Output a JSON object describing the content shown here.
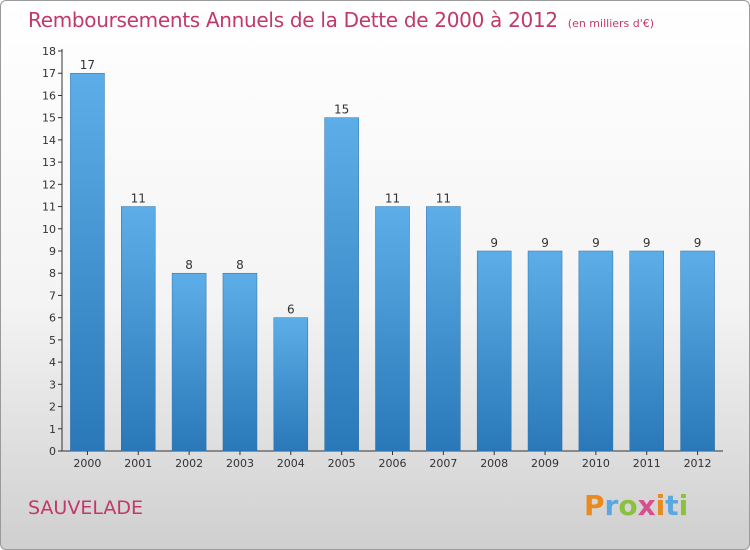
{
  "title": "Remboursements Annuels de la Dette de 2000 à 2012",
  "unit_note": "(en milliers d'€)",
  "commune": "SAUVELADE",
  "brand": {
    "text": "Proxiti",
    "colors": [
      "#e88a1f",
      "#5aa8df",
      "#8cc13f",
      "#d84f8e"
    ]
  },
  "colors": {
    "title": "#c2386a",
    "bar_top": "#5daee8",
    "bar_bottom": "#2a78b8"
  },
  "chart_data": {
    "type": "bar",
    "title": "Remboursements Annuels de la Dette de 2000 à 2012",
    "categories": [
      "2000",
      "2001",
      "2002",
      "2003",
      "2004",
      "2005",
      "2006",
      "2007",
      "2008",
      "2009",
      "2010",
      "2011",
      "2012"
    ],
    "values": [
      17,
      11,
      8,
      8,
      6,
      15,
      11,
      11,
      9,
      9,
      9,
      9,
      9
    ],
    "ylim": [
      0,
      18
    ],
    "yticks": [
      0,
      1,
      2,
      3,
      4,
      5,
      6,
      7,
      8,
      9,
      10,
      11,
      12,
      13,
      14,
      15,
      16,
      17,
      18
    ],
    "grid": false,
    "xlabel": "",
    "ylabel": ""
  }
}
